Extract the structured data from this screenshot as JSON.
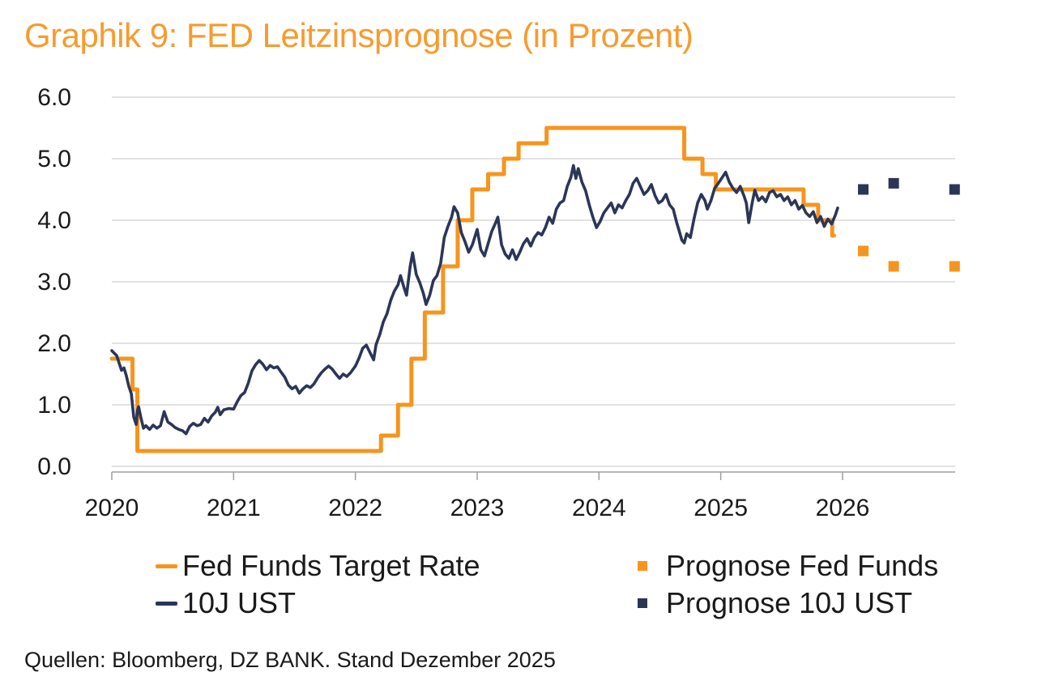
{
  "title": "Graphik 9: FED Leitzinsprognose (in Prozent)",
  "source_note": "Quellen: Bloomberg, DZ BANK. Stand Dezember 2025",
  "colors": {
    "orange": "#F7941D",
    "navy": "#2B3657",
    "grid": "#D8D8D8",
    "axis": "#9E9E9E",
    "text": "#1A1A1A",
    "title_orange": "#F79B2E"
  },
  "legend": [
    {
      "label": "Fed Funds Target Rate",
      "marker": "line",
      "color_key": "orange"
    },
    {
      "label": "10J UST",
      "marker": "line",
      "color_key": "navy"
    },
    {
      "label": "Prognose Fed Funds",
      "marker": "square",
      "color_key": "orange"
    },
    {
      "label": "Prognose 10J UST",
      "marker": "square",
      "color_key": "navy"
    }
  ],
  "chart_data": {
    "type": "line",
    "title": "Graphik 9: FED Leitzinsprognose (in Prozent)",
    "xlabel": "",
    "ylabel": "",
    "x_ticks": [
      "2020",
      "2021",
      "2022",
      "2023",
      "2024",
      "2025",
      "2026"
    ],
    "y_ticks": [
      "0.0",
      "1.0",
      "2.0",
      "3.0",
      "4.0",
      "5.0",
      "6.0"
    ],
    "xlim": [
      2020,
      2026.93
    ],
    "ylim": [
      0,
      6
    ],
    "grid": "horizontal",
    "legend_position": "bottom",
    "series": [
      {
        "name": "Fed Funds Target Rate",
        "type": "step",
        "color_key": "orange",
        "end_t": 2025.93,
        "points": [
          [
            2020.0,
            1.75
          ],
          [
            2020.17,
            1.25
          ],
          [
            2020.21,
            0.25
          ],
          [
            2022.21,
            0.5
          ],
          [
            2022.35,
            1.0
          ],
          [
            2022.46,
            1.75
          ],
          [
            2022.57,
            2.5
          ],
          [
            2022.72,
            3.25
          ],
          [
            2022.84,
            4.0
          ],
          [
            2022.96,
            4.5
          ],
          [
            2023.09,
            4.75
          ],
          [
            2023.22,
            5.0
          ],
          [
            2023.34,
            5.25
          ],
          [
            2023.57,
            5.5
          ],
          [
            2024.7,
            5.0
          ],
          [
            2024.85,
            4.75
          ],
          [
            2024.96,
            4.5
          ],
          [
            2025.68,
            4.25
          ],
          [
            2025.8,
            4.0
          ],
          [
            2025.915,
            3.75
          ]
        ]
      },
      {
        "name": "10J UST",
        "type": "line",
        "color_key": "navy",
        "points": [
          [
            2020.0,
            1.88
          ],
          [
            2020.02,
            1.84
          ],
          [
            2020.04,
            1.8
          ],
          [
            2020.06,
            1.68
          ],
          [
            2020.08,
            1.56
          ],
          [
            2020.1,
            1.6
          ],
          [
            2020.12,
            1.47
          ],
          [
            2020.14,
            1.3
          ],
          [
            2020.16,
            1.18
          ],
          [
            2020.18,
            0.8
          ],
          [
            2020.2,
            0.68
          ],
          [
            2020.21,
            0.9
          ],
          [
            2020.22,
            0.97
          ],
          [
            2020.24,
            0.78
          ],
          [
            2020.26,
            0.62
          ],
          [
            2020.28,
            0.66
          ],
          [
            2020.31,
            0.6
          ],
          [
            2020.34,
            0.67
          ],
          [
            2020.37,
            0.62
          ],
          [
            2020.4,
            0.66
          ],
          [
            2020.43,
            0.89
          ],
          [
            2020.46,
            0.72
          ],
          [
            2020.49,
            0.68
          ],
          [
            2020.52,
            0.63
          ],
          [
            2020.55,
            0.6
          ],
          [
            2020.58,
            0.58
          ],
          [
            2020.61,
            0.53
          ],
          [
            2020.64,
            0.65
          ],
          [
            2020.67,
            0.7
          ],
          [
            2020.7,
            0.66
          ],
          [
            2020.73,
            0.68
          ],
          [
            2020.76,
            0.78
          ],
          [
            2020.79,
            0.72
          ],
          [
            2020.82,
            0.82
          ],
          [
            2020.85,
            0.88
          ],
          [
            2020.87,
            0.96
          ],
          [
            2020.89,
            0.84
          ],
          [
            2020.92,
            0.92
          ],
          [
            2020.96,
            0.94
          ],
          [
            2021.0,
            0.93
          ],
          [
            2021.03,
            1.05
          ],
          [
            2021.06,
            1.15
          ],
          [
            2021.09,
            1.2
          ],
          [
            2021.12,
            1.35
          ],
          [
            2021.15,
            1.55
          ],
          [
            2021.18,
            1.65
          ],
          [
            2021.21,
            1.72
          ],
          [
            2021.24,
            1.66
          ],
          [
            2021.27,
            1.57
          ],
          [
            2021.3,
            1.64
          ],
          [
            2021.33,
            1.6
          ],
          [
            2021.36,
            1.62
          ],
          [
            2021.39,
            1.53
          ],
          [
            2021.42,
            1.45
          ],
          [
            2021.45,
            1.32
          ],
          [
            2021.48,
            1.26
          ],
          [
            2021.51,
            1.3
          ],
          [
            2021.54,
            1.19
          ],
          [
            2021.57,
            1.26
          ],
          [
            2021.6,
            1.31
          ],
          [
            2021.63,
            1.28
          ],
          [
            2021.66,
            1.34
          ],
          [
            2021.69,
            1.44
          ],
          [
            2021.72,
            1.52
          ],
          [
            2021.75,
            1.58
          ],
          [
            2021.78,
            1.63
          ],
          [
            2021.81,
            1.58
          ],
          [
            2021.84,
            1.5
          ],
          [
            2021.87,
            1.43
          ],
          [
            2021.9,
            1.5
          ],
          [
            2021.93,
            1.46
          ],
          [
            2021.96,
            1.52
          ],
          [
            2022.0,
            1.63
          ],
          [
            2022.03,
            1.76
          ],
          [
            2022.06,
            1.92
          ],
          [
            2022.09,
            1.97
          ],
          [
            2022.12,
            1.85
          ],
          [
            2022.15,
            1.73
          ],
          [
            2022.17,
            1.98
          ],
          [
            2022.2,
            2.14
          ],
          [
            2022.23,
            2.35
          ],
          [
            2022.26,
            2.48
          ],
          [
            2022.29,
            2.7
          ],
          [
            2022.32,
            2.85
          ],
          [
            2022.35,
            2.95
          ],
          [
            2022.37,
            3.1
          ],
          [
            2022.4,
            2.9
          ],
          [
            2022.42,
            2.78
          ],
          [
            2022.45,
            3.25
          ],
          [
            2022.47,
            3.47
          ],
          [
            2022.5,
            3.12
          ],
          [
            2022.53,
            2.98
          ],
          [
            2022.56,
            2.8
          ],
          [
            2022.58,
            2.63
          ],
          [
            2022.61,
            2.78
          ],
          [
            2022.64,
            3.02
          ],
          [
            2022.67,
            3.1
          ],
          [
            2022.7,
            3.3
          ],
          [
            2022.73,
            3.72
          ],
          [
            2022.76,
            3.9
          ],
          [
            2022.79,
            4.05
          ],
          [
            2022.81,
            4.22
          ],
          [
            2022.84,
            4.12
          ],
          [
            2022.87,
            3.8
          ],
          [
            2022.9,
            3.65
          ],
          [
            2022.93,
            3.48
          ],
          [
            2022.96,
            3.6
          ],
          [
            2023.0,
            3.85
          ],
          [
            2023.03,
            3.52
          ],
          [
            2023.06,
            3.42
          ],
          [
            2023.09,
            3.62
          ],
          [
            2023.12,
            3.82
          ],
          [
            2023.15,
            3.95
          ],
          [
            2023.17,
            4.05
          ],
          [
            2023.2,
            3.6
          ],
          [
            2023.23,
            3.45
          ],
          [
            2023.26,
            3.38
          ],
          [
            2023.29,
            3.52
          ],
          [
            2023.32,
            3.36
          ],
          [
            2023.35,
            3.48
          ],
          [
            2023.38,
            3.62
          ],
          [
            2023.41,
            3.7
          ],
          [
            2023.44,
            3.58
          ],
          [
            2023.47,
            3.72
          ],
          [
            2023.5,
            3.8
          ],
          [
            2023.53,
            3.76
          ],
          [
            2023.56,
            3.88
          ],
          [
            2023.59,
            4.05
          ],
          [
            2023.62,
            3.95
          ],
          [
            2023.65,
            4.18
          ],
          [
            2023.68,
            4.28
          ],
          [
            2023.71,
            4.32
          ],
          [
            2023.74,
            4.55
          ],
          [
            2023.77,
            4.7
          ],
          [
            2023.79,
            4.89
          ],
          [
            2023.81,
            4.68
          ],
          [
            2023.83,
            4.84
          ],
          [
            2023.86,
            4.62
          ],
          [
            2023.89,
            4.48
          ],
          [
            2023.92,
            4.25
          ],
          [
            2023.95,
            4.05
          ],
          [
            2023.98,
            3.88
          ],
          [
            2024.01,
            3.98
          ],
          [
            2024.04,
            4.12
          ],
          [
            2024.07,
            4.2
          ],
          [
            2024.1,
            4.28
          ],
          [
            2024.13,
            4.12
          ],
          [
            2024.16,
            4.25
          ],
          [
            2024.19,
            4.2
          ],
          [
            2024.22,
            4.32
          ],
          [
            2024.25,
            4.42
          ],
          [
            2024.28,
            4.6
          ],
          [
            2024.31,
            4.68
          ],
          [
            2024.34,
            4.55
          ],
          [
            2024.37,
            4.42
          ],
          [
            2024.4,
            4.48
          ],
          [
            2024.43,
            4.58
          ],
          [
            2024.46,
            4.4
          ],
          [
            2024.49,
            4.28
          ],
          [
            2024.52,
            4.32
          ],
          [
            2024.55,
            4.42
          ],
          [
            2024.58,
            4.25
          ],
          [
            2024.61,
            4.18
          ],
          [
            2024.64,
            3.95
          ],
          [
            2024.66,
            3.82
          ],
          [
            2024.68,
            3.68
          ],
          [
            2024.7,
            3.63
          ],
          [
            2024.72,
            3.78
          ],
          [
            2024.75,
            3.72
          ],
          [
            2024.78,
            4.02
          ],
          [
            2024.81,
            4.28
          ],
          [
            2024.84,
            4.42
          ],
          [
            2024.87,
            4.32
          ],
          [
            2024.89,
            4.18
          ],
          [
            2024.92,
            4.32
          ],
          [
            2024.95,
            4.52
          ],
          [
            2024.98,
            4.6
          ],
          [
            2025.02,
            4.72
          ],
          [
            2025.04,
            4.78
          ],
          [
            2025.07,
            4.62
          ],
          [
            2025.1,
            4.52
          ],
          [
            2025.13,
            4.45
          ],
          [
            2025.16,
            4.55
          ],
          [
            2025.19,
            4.4
          ],
          [
            2025.21,
            4.28
          ],
          [
            2025.23,
            3.96
          ],
          [
            2025.26,
            4.3
          ],
          [
            2025.28,
            4.49
          ],
          [
            2025.31,
            4.32
          ],
          [
            2025.34,
            4.38
          ],
          [
            2025.37,
            4.3
          ],
          [
            2025.4,
            4.45
          ],
          [
            2025.43,
            4.48
          ],
          [
            2025.46,
            4.38
          ],
          [
            2025.49,
            4.42
          ],
          [
            2025.52,
            4.32
          ],
          [
            2025.55,
            4.38
          ],
          [
            2025.58,
            4.25
          ],
          [
            2025.61,
            4.32
          ],
          [
            2025.64,
            4.18
          ],
          [
            2025.67,
            4.24
          ],
          [
            2025.7,
            4.12
          ],
          [
            2025.73,
            4.06
          ],
          [
            2025.76,
            4.14
          ],
          [
            2025.79,
            3.96
          ],
          [
            2025.82,
            4.06
          ],
          [
            2025.85,
            3.9
          ],
          [
            2025.88,
            4.02
          ],
          [
            2025.91,
            3.94
          ],
          [
            2025.94,
            4.08
          ],
          [
            2025.96,
            4.2
          ]
        ]
      },
      {
        "name": "Prognose Fed Funds",
        "type": "scatter_square",
        "color_key": "orange",
        "points": [
          [
            2026.17,
            3.5
          ],
          [
            2026.42,
            3.25
          ],
          [
            2026.92,
            3.25
          ]
        ]
      },
      {
        "name": "Prognose 10J UST",
        "type": "scatter_square",
        "color_key": "navy",
        "points": [
          [
            2026.17,
            4.5
          ],
          [
            2026.42,
            4.6
          ],
          [
            2026.92,
            4.5
          ]
        ]
      }
    ]
  }
}
